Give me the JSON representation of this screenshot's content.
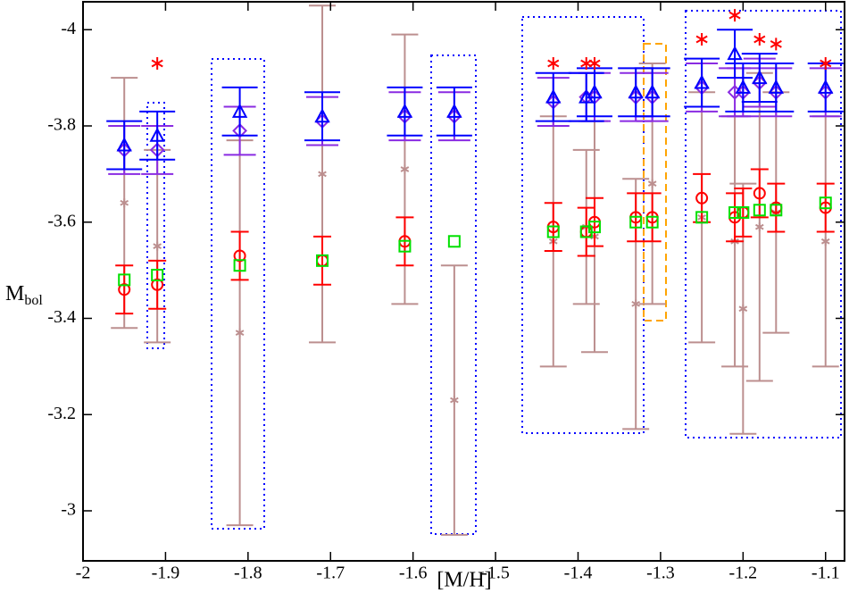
{
  "chart_data": {
    "type": "scatter",
    "x_label": "[M/H]",
    "y_label": "M",
    "y_label_sub": "bol",
    "x": [
      -1.95,
      -1.91,
      -1.81,
      -1.71,
      -1.61,
      -1.55,
      -1.43,
      -1.39,
      -1.38,
      -1.33,
      -1.31,
      -1.25,
      -1.21,
      -1.2,
      -1.18,
      -1.16,
      -1.1
    ],
    "xlim": [
      -2,
      -1.077
    ],
    "xticks": [
      -2,
      -1.9,
      -1.8,
      -1.7,
      -1.6,
      -1.5,
      -1.4,
      -1.3,
      -1.2,
      -1.1
    ],
    "ylim": [
      -2.896,
      -4.058
    ],
    "yticks": [
      -4,
      -3.8,
      -3.6,
      -3.4,
      -3.2,
      -3
    ],
    "series": [
      {
        "marker": "asterisk",
        "color": "#bc8f8f",
        "cap": 30,
        "values": [
          -3.64,
          -3.55,
          -3.37,
          -3.7,
          -3.71,
          -3.23,
          -3.56,
          -3.59,
          -3.57,
          -3.43,
          -3.68,
          -3.61,
          -3.56,
          -3.42,
          -3.59,
          -3.62,
          -3.56
        ],
        "errors": [
          0.26,
          0.2,
          0.4,
          0.35,
          0.28,
          0.28,
          0.26,
          0.16,
          0.24,
          0.26,
          0.25,
          0.26,
          0.26,
          0.26,
          0.32,
          0.25,
          0.26
        ]
      },
      {
        "marker": "circle",
        "color": "#ff0000",
        "cap": 20,
        "values": [
          -3.46,
          -3.47,
          -3.53,
          -3.52,
          -3.56,
          null,
          -3.59,
          -3.58,
          -3.6,
          -3.61,
          -3.61,
          -3.65,
          -3.61,
          -3.62,
          -3.66,
          -3.63,
          -3.63
        ],
        "errors": [
          0.05,
          0.05,
          0.05,
          0.05,
          0.05,
          null,
          0.05,
          0.05,
          0.05,
          0.05,
          0.05,
          0.05,
          0.05,
          0.05,
          0.05,
          0.05,
          0.05
        ]
      },
      {
        "marker": "square",
        "color": "#00e000",
        "values": [
          -3.48,
          -3.49,
          -3.51,
          -3.52,
          -3.55,
          -3.56,
          -3.58,
          -3.58,
          -3.59,
          -3.6,
          -3.6,
          -3.61,
          -3.62,
          -3.62,
          -3.625,
          -3.625,
          -3.64
        ]
      },
      {
        "marker": "diamond",
        "color": "#8a2be2",
        "cap": 36,
        "values": [
          -3.75,
          -3.75,
          -3.79,
          -3.81,
          -3.82,
          -3.82,
          -3.85,
          -3.86,
          -3.86,
          -3.86,
          -3.86,
          -3.88,
          -3.87,
          -3.87,
          -3.89,
          -3.87,
          -3.87
        ],
        "errors": [
          0.05,
          0.05,
          0.05,
          0.05,
          0.05,
          0.05,
          0.05,
          0.05,
          0.05,
          0.05,
          0.05,
          0.05,
          0.05,
          0.05,
          0.05,
          0.05,
          0.05
        ]
      },
      {
        "marker": "triangle",
        "color": "#0000ff",
        "cap": 40,
        "values": [
          -3.76,
          -3.78,
          -3.83,
          -3.82,
          -3.83,
          -3.83,
          -3.86,
          -3.86,
          -3.87,
          -3.87,
          -3.87,
          -3.89,
          -3.95,
          -3.88,
          -3.9,
          -3.88,
          -3.88
        ],
        "errors": [
          0.05,
          0.05,
          0.05,
          0.05,
          0.05,
          0.05,
          0.05,
          0.05,
          0.05,
          0.05,
          0.05,
          0.05,
          0.05,
          0.05,
          0.05,
          0.05,
          0.05
        ]
      },
      {
        "marker": "flag",
        "color": "#ff0000",
        "values": [
          null,
          -3.93,
          null,
          null,
          null,
          null,
          -3.93,
          -3.93,
          -3.93,
          null,
          null,
          -3.98,
          -4.03,
          null,
          -3.98,
          -3.97,
          -3.93
        ]
      }
    ]
  }
}
